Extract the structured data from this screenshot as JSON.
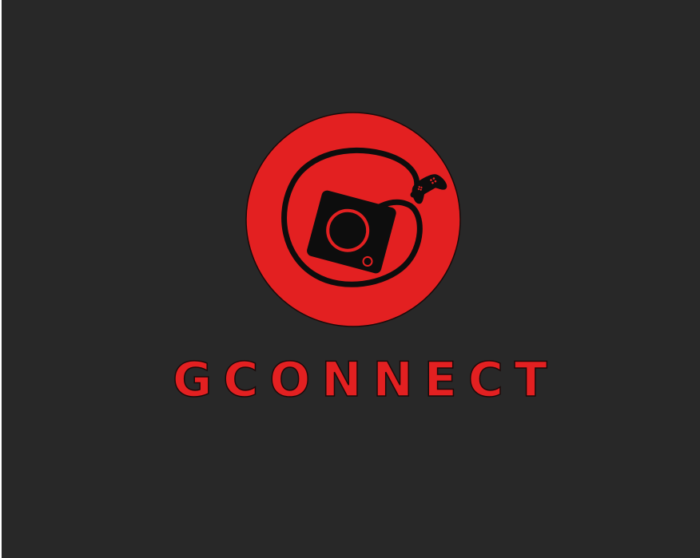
{
  "splash": {
    "brand_name": "GCONNECT",
    "logo_icon": "camera-controller-logo-icon"
  },
  "colors": {
    "background": "#282828",
    "brand_red": "#e32021",
    "ink": "#0d0d0d"
  }
}
